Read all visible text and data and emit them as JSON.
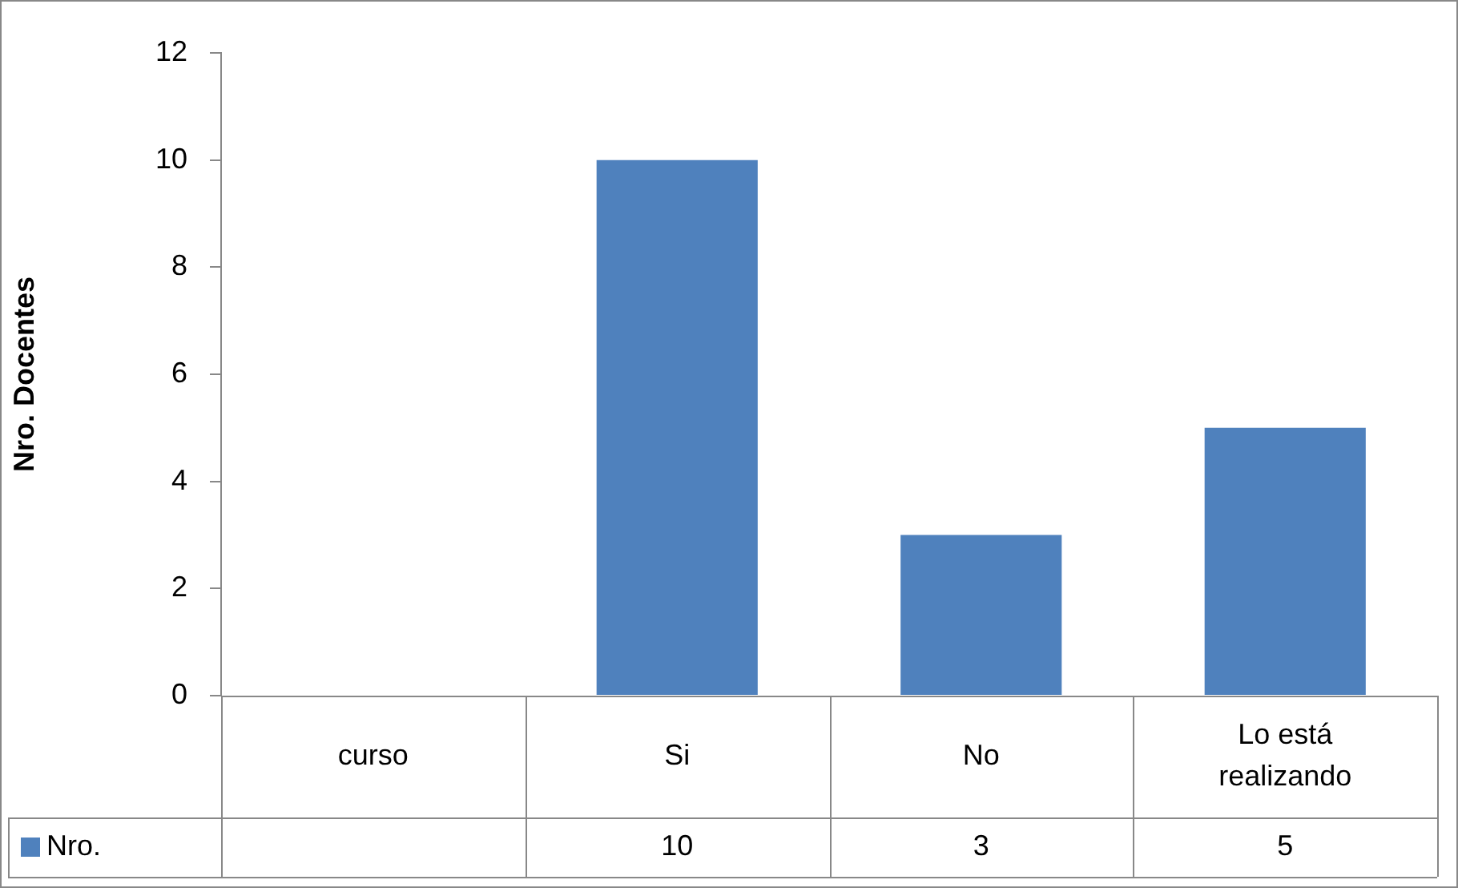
{
  "chart_data": {
    "type": "bar",
    "ylabel": "Nro. Docentes",
    "categories": [
      "curso",
      "Si",
      "No",
      "Lo está realizando"
    ],
    "series": [
      {
        "name": "Nro.",
        "color": "#4f81bd",
        "values": [
          null,
          10,
          3,
          5
        ]
      }
    ],
    "ylim": [
      0,
      12
    ],
    "yticks": [
      0,
      2,
      4,
      6,
      8,
      10,
      12
    ],
    "grid": false,
    "data_labels": true,
    "legend": "bottom left"
  }
}
